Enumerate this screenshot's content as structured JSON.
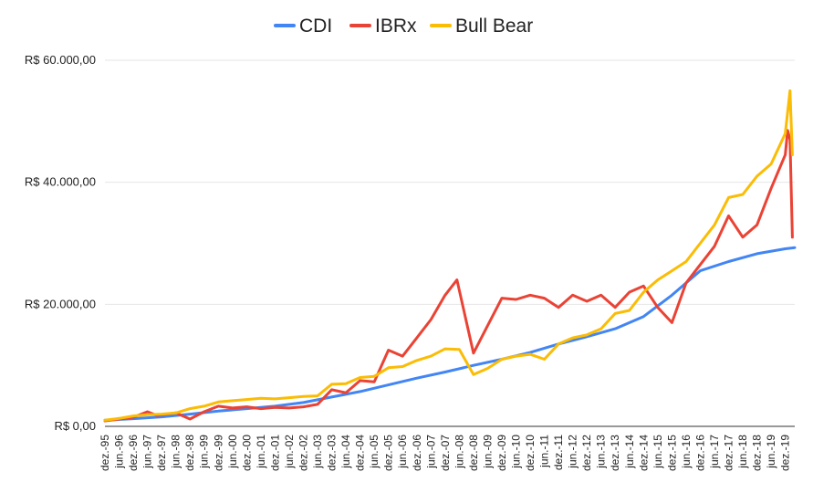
{
  "chart_data": {
    "type": "line",
    "title": "",
    "xlabel": "",
    "ylabel": "",
    "ylim": [
      0,
      60000
    ],
    "yticks": [
      0,
      20000,
      40000,
      60000
    ],
    "ytick_labels": [
      "R$ 0,00",
      "R$ 20.000,00",
      "R$ 40.000,00",
      "R$ 60.000,00"
    ],
    "grid": true,
    "legend_position": "top",
    "xtick_labels": [
      "dez.-95",
      "jun.-96",
      "dez.-96",
      "jun.-97",
      "dez.-97",
      "jun.-98",
      "dez.-98",
      "jun.-99",
      "dez.-99",
      "jun.-00",
      "dez.-00",
      "jun.-01",
      "dez.-01",
      "jun.-02",
      "dez.-02",
      "jun.-03",
      "dez.-03",
      "jun.-04",
      "dez.-04",
      "jun.-05",
      "dez.-05",
      "jun.-06",
      "dez.-06",
      "jun.-07",
      "dez.-07",
      "jun.-08",
      "dez.-08",
      "jun.-09",
      "dez.-09",
      "jun.-10",
      "dez.-10",
      "jun.-11",
      "dez.-11",
      "jun.-12",
      "dez.-12",
      "jun.-13",
      "dez.-13",
      "jun.-14",
      "dez.-14",
      "jun.-15",
      "dez.-15",
      "jun.-16",
      "dez.-16",
      "jun.-17",
      "dez.-17",
      "jun.-18",
      "dez.-18",
      "jun.-19",
      "dez.-19"
    ],
    "x_range": [
      "dez.-95",
      "abr.-20"
    ],
    "series": [
      {
        "name": "CDI",
        "color": "#4285F4",
        "x": [
          "dez.-95",
          "dez.-96",
          "dez.-97",
          "dez.-98",
          "dez.-99",
          "dez.-00",
          "dez.-01",
          "dez.-02",
          "dez.-03",
          "dez.-04",
          "dez.-05",
          "dez.-06",
          "dez.-07",
          "dez.-08",
          "dez.-09",
          "dez.-10",
          "dez.-11",
          "dez.-12",
          "dez.-13",
          "dez.-14",
          "dez.-15",
          "dez.-16",
          "dez.-17",
          "dez.-18",
          "dez.-19",
          "abr.-20"
        ],
        "values": [
          1000,
          1250,
          1550,
          2000,
          2500,
          2900,
          3300,
          3900,
          4800,
          5700,
          6800,
          7900,
          8900,
          10000,
          11000,
          12100,
          13500,
          14700,
          16000,
          18000,
          21500,
          25500,
          27000,
          28300,
          29100,
          29300
        ]
      },
      {
        "name": "IBRx",
        "color": "#EA4335",
        "x": [
          "dez.-95",
          "jun.-96",
          "dez.-96",
          "jun.-97",
          "out.-97",
          "dez.-97",
          "jun.-98",
          "dez.-98",
          "jun.-99",
          "dez.-99",
          "jun.-00",
          "dez.-00",
          "jun.-01",
          "dez.-01",
          "jun.-02",
          "dez.-02",
          "jun.-03",
          "dez.-03",
          "jun.-04",
          "dez.-04",
          "jun.-05",
          "dez.-05",
          "jun.-06",
          "dez.-06",
          "jun.-07",
          "dez.-07",
          "mai.-08",
          "dez.-08",
          "jun.-09",
          "dez.-09",
          "jun.-10",
          "dez.-10",
          "jun.-11",
          "dez.-11",
          "jun.-12",
          "dez.-12",
          "jun.-13",
          "dez.-13",
          "jun.-14",
          "dez.-14",
          "jun.-15",
          "dez.-15",
          "jun.-16",
          "dez.-16",
          "jun.-17",
          "dez.-17",
          "jun.-18",
          "dez.-18",
          "jun.-19",
          "dez.-19",
          "jan.-20",
          "fev.-20",
          "mar.-20"
        ],
        "values": [
          900,
          1200,
          1500,
          2400,
          1800,
          1900,
          2200,
          1200,
          2400,
          3300,
          3000,
          3200,
          2900,
          3100,
          3000,
          3200,
          3600,
          6000,
          5500,
          7500,
          7300,
          12500,
          11500,
          14500,
          17500,
          21500,
          24000,
          12000,
          16500,
          21000,
          20800,
          21500,
          21000,
          19500,
          21500,
          20500,
          21500,
          19500,
          22000,
          23000,
          19500,
          17000,
          23500,
          26500,
          29500,
          34500,
          31000,
          33000,
          39000,
          44500,
          48500,
          47000,
          31000
        ]
      },
      {
        "name": "Bull Bear",
        "color": "#FBBC04",
        "x": [
          "dez.-95",
          "jun.-96",
          "dez.-96",
          "jun.-97",
          "dez.-97",
          "jun.-98",
          "dez.-98",
          "jun.-99",
          "dez.-99",
          "jun.-00",
          "dez.-00",
          "jun.-01",
          "dez.-01",
          "jun.-02",
          "dez.-02",
          "jun.-03",
          "dez.-03",
          "jun.-04",
          "dez.-04",
          "jun.-05",
          "dez.-05",
          "jun.-06",
          "dez.-06",
          "jun.-07",
          "dez.-07",
          "jun.-08",
          "dez.-08",
          "jun.-09",
          "dez.-09",
          "jun.-10",
          "dez.-10",
          "jun.-11",
          "dez.-11",
          "jun.-12",
          "dez.-12",
          "jun.-13",
          "dez.-13",
          "jun.-14",
          "dez.-14",
          "jun.-15",
          "dez.-15",
          "jun.-16",
          "dez.-16",
          "jun.-17",
          "dez.-17",
          "jun.-18",
          "dez.-18",
          "jun.-19",
          "dez.-19",
          "fev.-20",
          "mar.-20"
        ],
        "values": [
          1000,
          1300,
          1700,
          1900,
          2000,
          2200,
          2900,
          3300,
          4000,
          4200,
          4400,
          4600,
          4500,
          4700,
          4900,
          5000,
          6900,
          7000,
          8000,
          8200,
          9600,
          9800,
          10800,
          11500,
          12700,
          12600,
          8500,
          9500,
          11000,
          11500,
          11800,
          11000,
          13500,
          14500,
          15000,
          16000,
          18500,
          19000,
          22000,
          24000,
          25500,
          27000,
          30000,
          33000,
          37500,
          38000,
          41000,
          43000,
          48000,
          55000,
          44500
        ]
      }
    ]
  }
}
